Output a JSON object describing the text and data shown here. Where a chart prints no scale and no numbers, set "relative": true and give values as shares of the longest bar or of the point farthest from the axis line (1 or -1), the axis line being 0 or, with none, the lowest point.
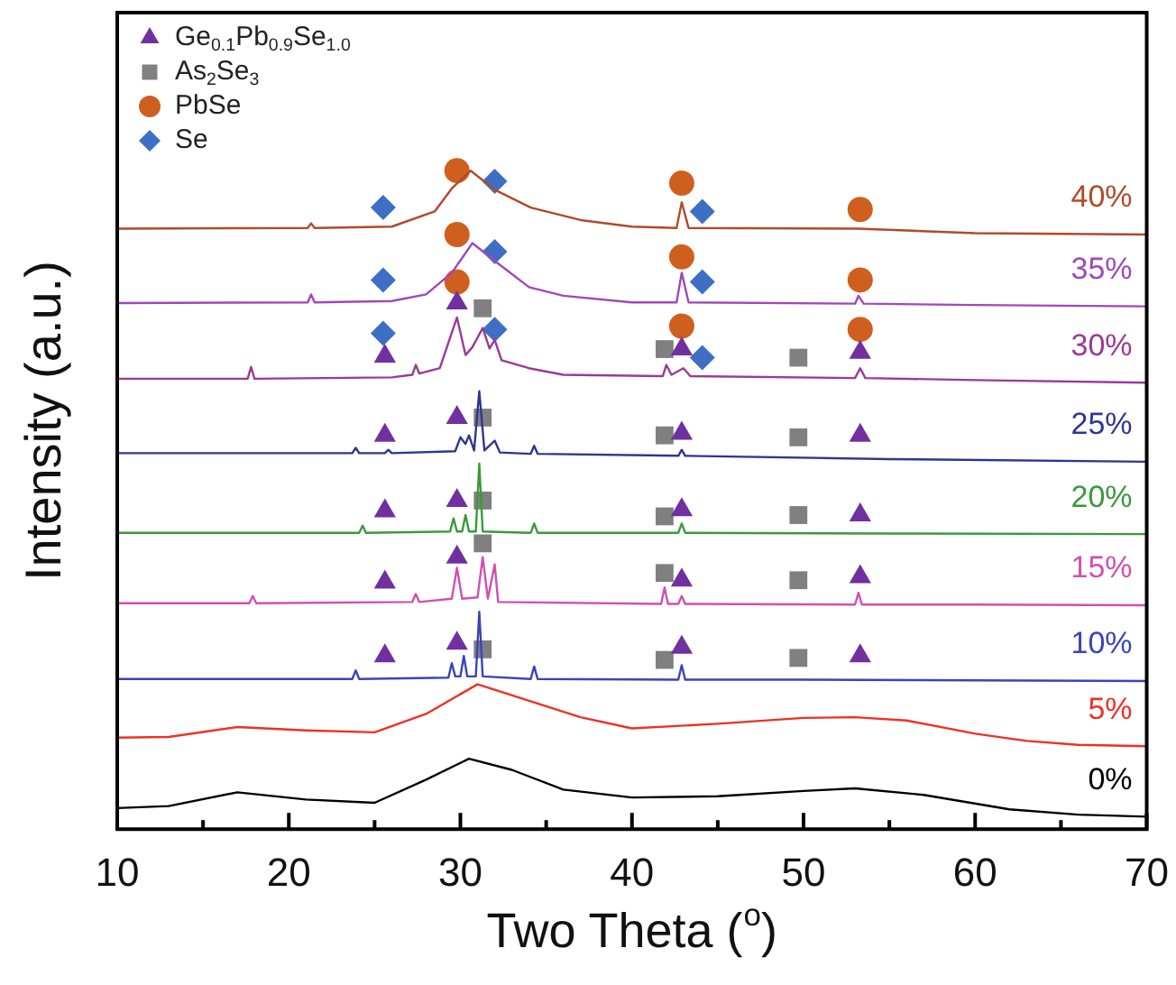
{
  "chart_data": {
    "type": "line",
    "relative": true,
    "xlabel": "Two Theta ($^{o}$)",
    "ylabel": "Intensity (a.u.)",
    "legend": "top left",
    "xlim": [
      10,
      70
    ],
    "xticks": [
      10,
      {
        "value": 15,
        "label": null
      },
      20,
      {
        "value": 25,
        "label": null
      },
      30,
      {
        "value": 35,
        "label": null
      },
      40,
      {
        "value": 45,
        "label": null
      },
      50,
      {
        "value": 55,
        "label": null
      },
      60,
      {
        "value": 65,
        "label": null
      },
      70
    ],
    "series": [
      {
        "name": "0%",
        "color": "#000000",
        "x": [
          10,
          13,
          17,
          21,
          25,
          28,
          30.5,
          33,
          36,
          40,
          45,
          50,
          53,
          57,
          62,
          66,
          70
        ],
        "values": [
          0.032,
          0.035,
          0.056,
          0.045,
          0.04,
          0.075,
          0.107,
          0.09,
          0.06,
          0.048,
          0.05,
          0.058,
          0.062,
          0.052,
          0.03,
          0.022,
          0.019
        ]
      },
      {
        "name": "5%",
        "color": "#f03024",
        "x": [
          10,
          13,
          17,
          21,
          25,
          28,
          31,
          34,
          37,
          40,
          45,
          50,
          53,
          56,
          60,
          63,
          66,
          70
        ],
        "values": [
          0.139,
          0.14,
          0.155,
          0.15,
          0.147,
          0.175,
          0.22,
          0.195,
          0.17,
          0.153,
          0.16,
          0.169,
          0.17,
          0.165,
          0.145,
          0.134,
          0.128,
          0.126
        ]
      },
      {
        "name": "10%",
        "color": "#3a44b8",
        "x": [
          10,
          20,
          23.7,
          23.9,
          24.1,
          29.3,
          29.5,
          29.7,
          30.0,
          30.2,
          30.4,
          30.9,
          31.1,
          31.3,
          34.1,
          34.3,
          34.5,
          42.7,
          42.9,
          43.1,
          50,
          60,
          70
        ],
        "values": [
          0.228,
          0.228,
          0.228,
          0.241,
          0.228,
          0.23,
          0.252,
          0.232,
          0.232,
          0.263,
          0.232,
          0.232,
          0.33,
          0.232,
          0.228,
          0.247,
          0.228,
          0.227,
          0.249,
          0.227,
          0.227,
          0.226,
          0.225
        ]
      },
      {
        "name": "15%",
        "color": "#d050b0",
        "x": [
          10,
          17.7,
          17.9,
          18.1,
          27.2,
          27.4,
          27.6,
          29.5,
          29.8,
          30.1,
          31.0,
          31.3,
          31.6,
          32.0,
          32.2,
          41.7,
          41.9,
          42.1,
          42.7,
          42.9,
          43.1,
          53.0,
          53.2,
          53.4,
          60,
          70
        ],
        "values": [
          0.343,
          0.343,
          0.354,
          0.343,
          0.345,
          0.357,
          0.345,
          0.35,
          0.397,
          0.35,
          0.352,
          0.413,
          0.35,
          0.402,
          0.345,
          0.342,
          0.367,
          0.342,
          0.342,
          0.354,
          0.342,
          0.341,
          0.359,
          0.341,
          0.341,
          0.34
        ]
      },
      {
        "name": "20%",
        "color": "#3a9a3a",
        "x": [
          10,
          24.1,
          24.3,
          24.5,
          29.4,
          29.6,
          29.8,
          30.1,
          30.3,
          30.5,
          30.9,
          31.1,
          31.3,
          34.1,
          34.3,
          34.5,
          42.7,
          42.9,
          43.1,
          55,
          70
        ],
        "values": [
          0.45,
          0.45,
          0.461,
          0.45,
          0.452,
          0.472,
          0.452,
          0.452,
          0.477,
          0.452,
          0.452,
          0.555,
          0.452,
          0.45,
          0.464,
          0.45,
          0.45,
          0.464,
          0.45,
          0.449,
          0.448
        ]
      },
      {
        "name": "25%",
        "color": "#2e3590",
        "x": [
          10,
          23.7,
          23.9,
          24.1,
          25.6,
          25.8,
          26.0,
          29.7,
          30.0,
          30.3,
          30.5,
          30.8,
          31.1,
          31.4,
          32.0,
          32.3,
          34.1,
          34.3,
          34.5,
          42.7,
          42.9,
          43.1,
          55,
          70
        ],
        "values": [
          0.571,
          0.571,
          0.579,
          0.571,
          0.571,
          0.576,
          0.571,
          0.574,
          0.595,
          0.585,
          0.598,
          0.575,
          0.665,
          0.575,
          0.59,
          0.572,
          0.57,
          0.582,
          0.57,
          0.567,
          0.576,
          0.567,
          0.562,
          0.558
        ]
      },
      {
        "name": "30%",
        "color": "#9a3a98",
        "x": [
          10,
          17.6,
          17.8,
          18.0,
          26,
          27.2,
          27.4,
          27.6,
          28.8,
          29.8,
          30.3,
          30.7,
          31.3,
          31.7,
          32.0,
          32.4,
          34,
          36,
          41.8,
          42.0,
          42.3,
          43,
          43.4,
          53.0,
          53.3,
          53.6,
          60,
          70
        ],
        "values": [
          0.684,
          0.684,
          0.702,
          0.684,
          0.686,
          0.69,
          0.705,
          0.692,
          0.7,
          0.777,
          0.72,
          0.732,
          0.761,
          0.73,
          0.743,
          0.712,
          0.7,
          0.69,
          0.688,
          0.705,
          0.69,
          0.7,
          0.688,
          0.685,
          0.7,
          0.685,
          0.682,
          0.678
        ]
      },
      {
        "name": "35%",
        "color": "#a048b8",
        "x": [
          10,
          21.1,
          21.3,
          21.5,
          26,
          28,
          29.5,
          30.7,
          32,
          34,
          36,
          40,
          42.6,
          42.9,
          43.3,
          53.0,
          53.2,
          53.5,
          60,
          70
        ],
        "values": [
          0.799,
          0.8,
          0.812,
          0.8,
          0.802,
          0.812,
          0.845,
          0.89,
          0.863,
          0.823,
          0.81,
          0.8,
          0.8,
          0.845,
          0.8,
          0.798,
          0.81,
          0.798,
          0.796,
          0.794
        ]
      },
      {
        "name": "40%",
        "color": "#b04a2a",
        "x": [
          10,
          21.1,
          21.3,
          21.5,
          26,
          28.5,
          29.5,
          30.6,
          32,
          34.1,
          37,
          40,
          42.6,
          42.9,
          43.3,
          53.2,
          60,
          70
        ],
        "values": [
          0.912,
          0.913,
          0.92,
          0.913,
          0.915,
          0.938,
          0.973,
          1.0,
          0.971,
          0.944,
          0.925,
          0.915,
          0.913,
          0.952,
          0.913,
          0.912,
          0.905,
          0.903
        ]
      },
      {
        "name": "Ge$_{0.1}$Pb$_{0.9}$Se$_{1.0}$",
        "type": "scatter",
        "marker": "triangle",
        "color": "#7030a0",
        "x": [
          25.6,
          29.8,
          42.9,
          53.3,
          25.6,
          29.8,
          42.9,
          53.3,
          25.6,
          29.8,
          42.9,
          53.3,
          25.6,
          29.8,
          42.9,
          53.3,
          25.6,
          29.8,
          42.9,
          53.3
        ],
        "values": [
          0.263,
          0.282,
          0.276,
          0.263,
          0.375,
          0.413,
          0.378,
          0.383,
          0.483,
          0.499,
          0.485,
          0.477,
          0.598,
          0.625,
          0.601,
          0.598,
          0.718,
          0.799,
          0.729,
          0.724
        ]
      },
      {
        "name": "As$_{2}$Se$_{3}$",
        "type": "scatter",
        "marker": "square",
        "color": "#808080",
        "x": [
          31.3,
          41.9,
          49.7,
          31.3,
          41.9,
          49.7,
          31.3,
          41.9,
          49.7,
          31.3,
          41.9,
          49.7,
          31.3,
          41.9,
          49.7
        ],
        "values": [
          0.273,
          0.257,
          0.26,
          0.434,
          0.389,
          0.378,
          0.499,
          0.475,
          0.477,
          0.625,
          0.598,
          0.595,
          0.791,
          0.729,
          0.716
        ]
      },
      {
        "name": "PbSe",
        "type": "scatter",
        "marker": "circle",
        "color": "#cf5f1e",
        "x": [
          29.8,
          42.9,
          53.3,
          29.8,
          42.9,
          53.3,
          29.8,
          42.9,
          53.3
        ],
        "values": [
          0.831,
          0.764,
          0.759,
          0.903,
          0.869,
          0.834,
          1.0,
          0.981,
          0.941
        ]
      },
      {
        "name": "Se",
        "type": "scatter",
        "marker": "diamond",
        "color": "#3f6fc4",
        "x": [
          25.5,
          32.0,
          44.1,
          25.5,
          32.0,
          44.1,
          25.5,
          32.0,
          44.1
        ],
        "values": [
          0.753,
          0.759,
          0.716,
          0.834,
          0.877,
          0.831,
          0.944,
          0.984,
          0.938
        ]
      }
    ]
  }
}
